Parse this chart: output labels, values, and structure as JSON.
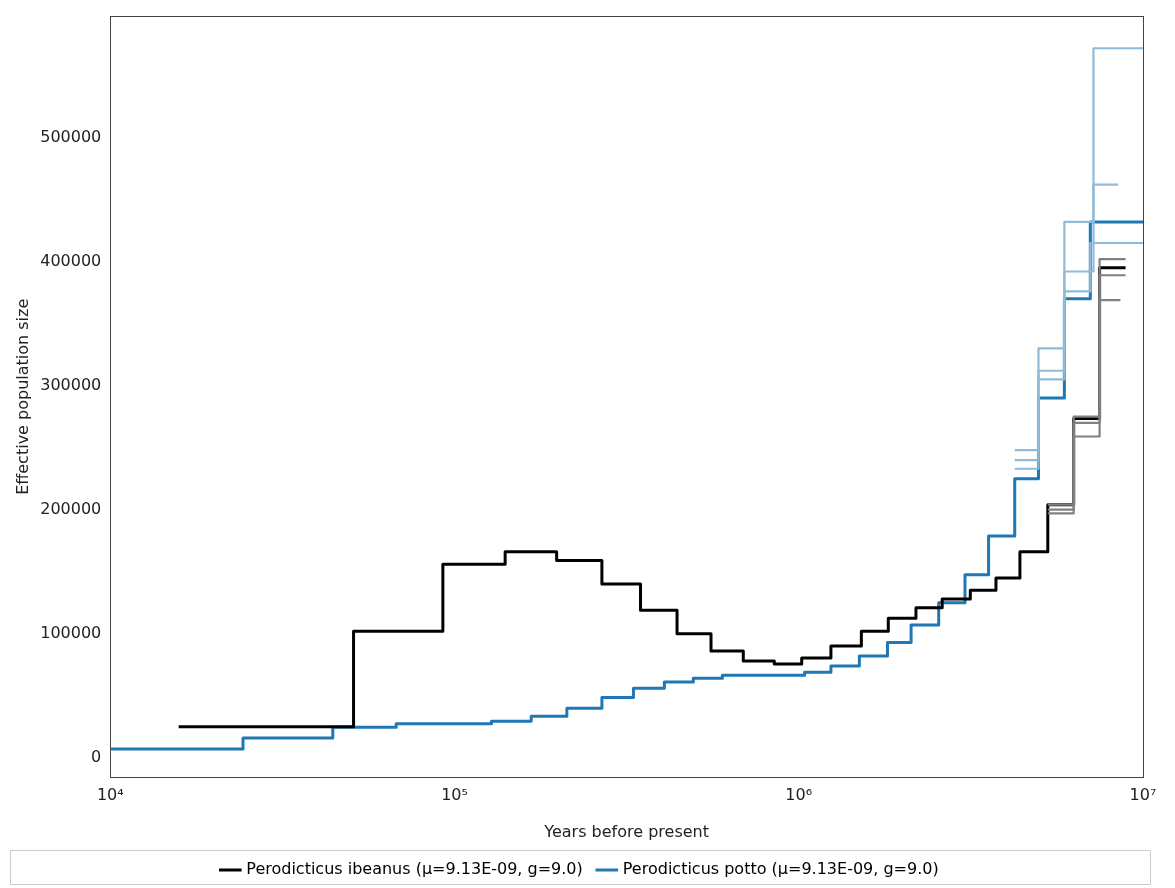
{
  "chart_data": {
    "type": "step",
    "xlabel": "Years before present",
    "ylabel": "Effective population size",
    "log": "x",
    "grid": false,
    "legend": "bottom",
    "xlim": [
      10000,
      10000000
    ],
    "xticks": [
      {
        "value": 10000,
        "label": "10⁴"
      },
      {
        "value": 100000,
        "label": "10⁵"
      },
      {
        "value": 1000000,
        "label": "10⁶"
      },
      {
        "value": 10000000,
        "label": "10⁷"
      }
    ],
    "ylim": [
      -16000,
      598000
    ],
    "yticks": [
      0,
      100000,
      200000,
      300000,
      400000,
      500000
    ],
    "series": [
      {
        "color": "#8fbbd9",
        "x": [
          4240000,
          4970000,
          5910000,
          7180000,
          10000000
        ],
        "values": [
          240000,
          330000,
          392000,
          572000,
          572000
        ]
      },
      {
        "color": "#8fbbd9",
        "x": [
          4240000,
          4970000,
          5910000,
          7180000,
          8470000
        ],
        "values": [
          248000,
          312000,
          432000,
          462000,
          462000
        ]
      },
      {
        "color": "#8fbbd9",
        "x": [
          4240000,
          4970000,
          5910000,
          7030000,
          10000000
        ],
        "values": [
          233000,
          305000,
          376000,
          415000,
          415000
        ]
      },
      {
        "color": "#808080",
        "x": [
          5290000,
          6290000,
          7480000,
          8900000
        ],
        "values": [
          197000,
          259000,
          402000,
          402000
        ]
      },
      {
        "color": "#808080",
        "x": [
          5290000,
          6290000,
          7480000,
          8900000
        ],
        "values": [
          200000,
          275000,
          389000,
          389000
        ]
      },
      {
        "color": "#808080",
        "x": [
          5290000,
          6290000,
          7480000,
          8600000
        ],
        "values": [
          204000,
          270000,
          369000,
          369000
        ]
      },
      {
        "name": "Perodicticus ibeanus (μ=9.13E-09, g=9.0)",
        "color": "#000000",
        "x": [
          15800,
          50900,
          92500,
          140300,
          198000,
          268000,
          347000,
          443000,
          556000,
          690000,
          849000,
          1020000,
          1240000,
          1520000,
          1820000,
          2190000,
          2610000,
          3150000,
          3740000,
          4390000,
          5290000,
          6290000,
          7480000,
          8900000
        ],
        "values": [
          25000,
          102000,
          156000,
          166000,
          159000,
          140000,
          119000,
          100000,
          86000,
          78000,
          75500,
          80500,
          90000,
          102000,
          112500,
          121000,
          128000,
          135000,
          145000,
          166000,
          204000,
          273500,
          395000,
          395000
        ]
      },
      {
        "name": "Perodicticus potto (μ=9.13E-09, g=9.0)",
        "color": "#1f77b4",
        "x": [
          10000,
          24300,
          44300,
          67700,
          128000,
          167000,
          212000,
          268000,
          331000,
          407000,
          494000,
          600000,
          1040000,
          1240000,
          1500000,
          1810000,
          2120000,
          2550000,
          3040000,
          3560000,
          4240000,
          4970000,
          5910000,
          7030000,
          10000000
        ],
        "values": [
          7000,
          16000,
          24500,
          27500,
          29500,
          33500,
          40000,
          48500,
          56000,
          61000,
          64000,
          66500,
          69000,
          74000,
          82000,
          93000,
          107000,
          125000,
          147500,
          178700,
          225000,
          290000,
          370000,
          432000,
          432000
        ]
      }
    ]
  }
}
